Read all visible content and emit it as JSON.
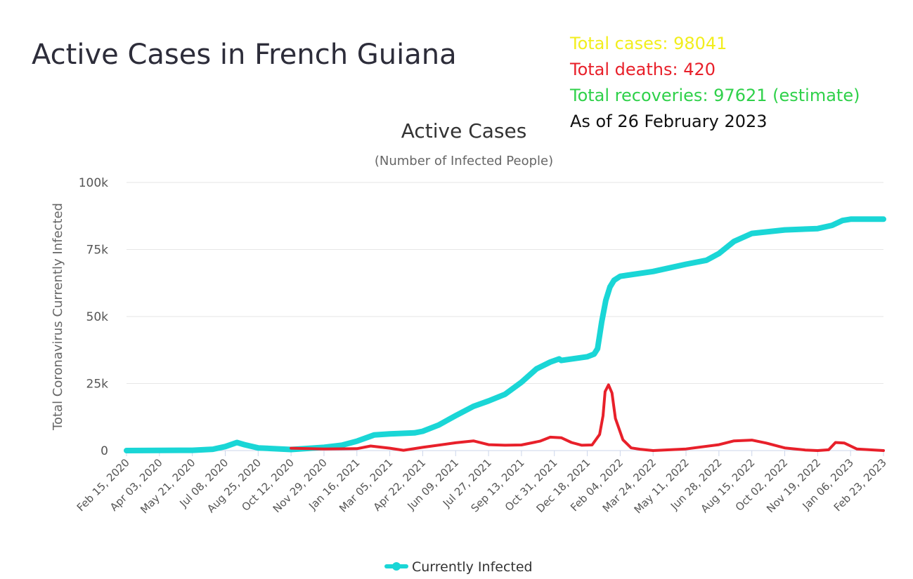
{
  "page": {
    "title": "Active Cases in French Guiana"
  },
  "stats": {
    "total_cases": "Total cases: 98041",
    "total_deaths": "Total deaths: 420",
    "total_recoveries": "Total recoveries: 97621 (estimate)",
    "as_of": "As of 26 February 2023"
  },
  "colors": {
    "cases": "#f2ee1d",
    "deaths": "#e8202a",
    "recoveries": "#2fd14a",
    "infected_line": "#1ad6d6",
    "daily_line": "#e8202a",
    "grid": "#e6e6e6"
  },
  "chart_data": {
    "type": "line",
    "title": "Active Cases",
    "subtitle": "(Number of Infected People)",
    "ylabel": "Total Coronavirus Currently Infected",
    "xlabel": "",
    "ylim": [
      0,
      100000
    ],
    "yticks": [
      0,
      25000,
      50000,
      75000,
      100000
    ],
    "ytick_labels": [
      "0",
      "25k",
      "50k",
      "75k",
      "100k"
    ],
    "xlim": [
      "2020-02-15",
      "2023-02-23"
    ],
    "xtick_dates": [
      "2020-02-15",
      "2020-04-03",
      "2020-05-21",
      "2020-07-08",
      "2020-08-25",
      "2020-10-12",
      "2020-11-29",
      "2021-01-16",
      "2021-03-05",
      "2021-04-22",
      "2021-06-09",
      "2021-07-27",
      "2021-09-13",
      "2021-10-31",
      "2021-12-18",
      "2022-02-04",
      "2022-03-24",
      "2022-05-11",
      "2022-06-28",
      "2022-08-15",
      "2022-10-02",
      "2022-11-19",
      "2023-01-06",
      "2023-02-23"
    ],
    "xtick_labels": [
      "Feb 15, 2020",
      "Apr 03, 2020",
      "May 21, 2020",
      "Jul 08, 2020",
      "Aug 25, 2020",
      "Oct 12, 2020",
      "Nov 29, 2020",
      "Jan 16, 2021",
      "Mar 05, 2021",
      "Apr 22, 2021",
      "Jun 09, 2021",
      "Jul 27, 2021",
      "Sep 13, 2021",
      "Oct 31, 2021",
      "Dec 18, 2021",
      "Feb 04, 2022",
      "Mar 24, 2022",
      "May 11, 2022",
      "Jun 28, 2022",
      "Aug 15, 2022",
      "Oct 02, 2022",
      "Nov 19, 2022",
      "Jan 06, 2023",
      "Feb 23, 2023"
    ],
    "grid": true,
    "legend_position": "bottom-center",
    "series": [
      {
        "name": "Currently Infected",
        "color": "#1ad6d6",
        "points": [
          [
            "2020-02-15",
            0
          ],
          [
            "2020-05-21",
            100
          ],
          [
            "2020-06-20",
            500
          ],
          [
            "2020-07-08",
            1500
          ],
          [
            "2020-07-25",
            3000
          ],
          [
            "2020-08-05",
            2200
          ],
          [
            "2020-08-25",
            1000
          ],
          [
            "2020-10-12",
            400
          ],
          [
            "2020-11-29",
            1200
          ],
          [
            "2020-12-25",
            2000
          ],
          [
            "2021-01-16",
            3500
          ],
          [
            "2021-02-10",
            5800
          ],
          [
            "2021-03-05",
            6200
          ],
          [
            "2021-04-10",
            6600
          ],
          [
            "2021-04-22",
            7200
          ],
          [
            "2021-05-15",
            9500
          ],
          [
            "2021-06-09",
            13000
          ],
          [
            "2021-07-05",
            16500
          ],
          [
            "2021-07-27",
            18500
          ],
          [
            "2021-08-20",
            21000
          ],
          [
            "2021-09-13",
            25500
          ],
          [
            "2021-10-05",
            30500
          ],
          [
            "2021-10-25",
            33000
          ],
          [
            "2021-11-07",
            34200
          ],
          [
            "2021-11-10",
            33600
          ],
          [
            "2021-12-18",
            35000
          ],
          [
            "2021-12-28",
            36000
          ],
          [
            "2022-01-02",
            38000
          ],
          [
            "2022-01-08",
            48000
          ],
          [
            "2022-01-14",
            56000
          ],
          [
            "2022-01-20",
            61000
          ],
          [
            "2022-01-26",
            63500
          ],
          [
            "2022-02-04",
            65000
          ],
          [
            "2022-03-24",
            66800
          ],
          [
            "2022-05-11",
            69500
          ],
          [
            "2022-06-10",
            71000
          ],
          [
            "2022-06-28",
            73500
          ],
          [
            "2022-07-20",
            78000
          ],
          [
            "2022-08-15",
            81000
          ],
          [
            "2022-10-02",
            82300
          ],
          [
            "2022-11-19",
            82800
          ],
          [
            "2022-12-10",
            84000
          ],
          [
            "2022-12-25",
            85800
          ],
          [
            "2023-01-06",
            86300
          ],
          [
            "2023-02-23",
            86300
          ]
        ]
      },
      {
        "name": "",
        "color": "#e8202a",
        "points": [
          [
            "2020-10-12",
            900
          ],
          [
            "2020-11-29",
            600
          ],
          [
            "2021-01-16",
            700
          ],
          [
            "2021-02-05",
            1700
          ],
          [
            "2021-03-05",
            900
          ],
          [
            "2021-03-25",
            100
          ],
          [
            "2021-04-22",
            1200
          ],
          [
            "2021-06-09",
            2900
          ],
          [
            "2021-07-05",
            3600
          ],
          [
            "2021-07-27",
            2200
          ],
          [
            "2021-08-20",
            2000
          ],
          [
            "2021-09-13",
            2100
          ],
          [
            "2021-10-10",
            3500
          ],
          [
            "2021-10-25",
            5000
          ],
          [
            "2021-11-10",
            4800
          ],
          [
            "2021-11-25",
            3000
          ],
          [
            "2021-12-10",
            2000
          ],
          [
            "2021-12-25",
            2100
          ],
          [
            "2022-01-05",
            6000
          ],
          [
            "2022-01-10",
            13000
          ],
          [
            "2022-01-13",
            22000
          ],
          [
            "2022-01-18",
            24500
          ],
          [
            "2022-01-23",
            21500
          ],
          [
            "2022-01-28",
            12000
          ],
          [
            "2022-02-08",
            4000
          ],
          [
            "2022-02-20",
            1000
          ],
          [
            "2022-03-05",
            500
          ],
          [
            "2022-03-24",
            0
          ],
          [
            "2022-05-11",
            600
          ],
          [
            "2022-06-28",
            2200
          ],
          [
            "2022-07-20",
            3600
          ],
          [
            "2022-08-15",
            3900
          ],
          [
            "2022-09-05",
            2800
          ],
          [
            "2022-10-02",
            1000
          ],
          [
            "2022-11-01",
            200
          ],
          [
            "2022-11-19",
            0
          ],
          [
            "2022-12-05",
            300
          ],
          [
            "2022-12-15",
            3000
          ],
          [
            "2022-12-28",
            2800
          ],
          [
            "2023-01-15",
            600
          ],
          [
            "2023-02-23",
            0
          ]
        ]
      }
    ]
  }
}
